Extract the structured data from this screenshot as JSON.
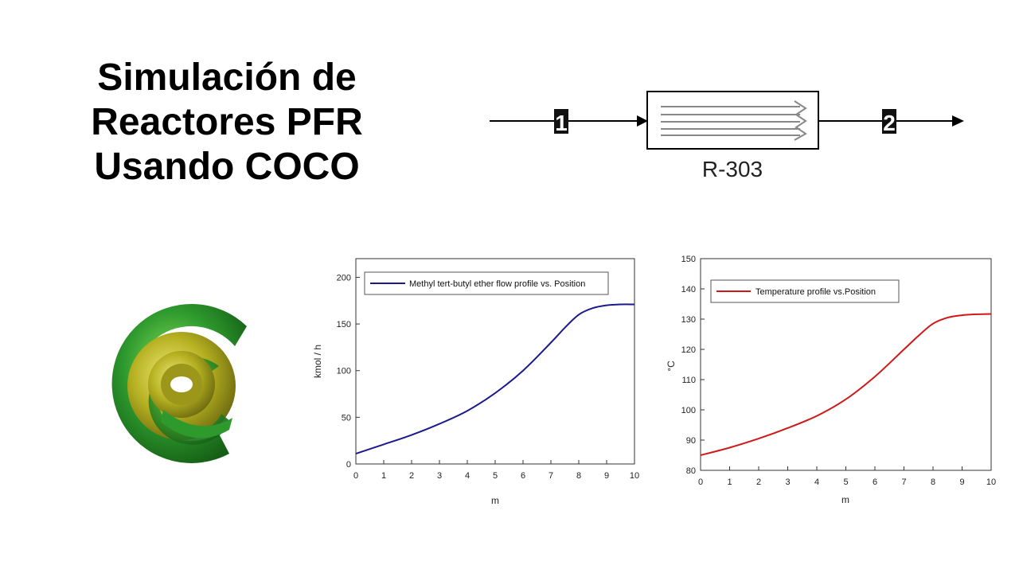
{
  "title": {
    "lines": [
      "Simulación de",
      "Reactores PFR",
      "Usando COCO"
    ]
  },
  "flowsheet": {
    "inlet_stream": "1",
    "outlet_stream": "2",
    "reactor_label": "R-303"
  },
  "colors": {
    "mtbe_line": "#1a1a8c",
    "temp_line": "#d01818",
    "logo_green": "#2e9a2e",
    "logo_yellow": "#b5b020"
  },
  "chart_data": [
    {
      "type": "line",
      "title": "",
      "xlabel": "m",
      "ylabel": "kmol / h",
      "xlim": [
        0,
        10
      ],
      "ylim": [
        0,
        220
      ],
      "xticks": [
        0,
        1,
        2,
        3,
        4,
        5,
        6,
        7,
        8,
        9,
        10
      ],
      "yticks": [
        0,
        50,
        100,
        150,
        200
      ],
      "grid": false,
      "legend": "top-left",
      "series": [
        {
          "name": "Methyl tert-butyl ether flow profile vs. Position",
          "x": [
            0,
            1,
            2,
            3,
            4,
            5,
            6,
            7,
            7.5,
            8,
            8.5,
            9,
            9.5,
            10
          ],
          "y": [
            11,
            21,
            31,
            43,
            57,
            76,
            100,
            130,
            146,
            160,
            167,
            170,
            171,
            171
          ]
        }
      ]
    },
    {
      "type": "line",
      "title": "",
      "xlabel": "m",
      "ylabel": "°C",
      "xlim": [
        0,
        10
      ],
      "ylim": [
        80,
        150
      ],
      "xticks": [
        0,
        1,
        2,
        3,
        4,
        5,
        6,
        7,
        8,
        9,
        10
      ],
      "yticks": [
        80,
        90,
        100,
        110,
        120,
        130,
        140,
        150
      ],
      "grid": false,
      "legend": "top-left",
      "series": [
        {
          "name": "Temperature profile vs.Position",
          "x": [
            0,
            1,
            2,
            3,
            4,
            5,
            6,
            7,
            7.5,
            8,
            8.5,
            9,
            9.5,
            10
          ],
          "y": [
            85,
            87.5,
            90.5,
            94,
            98,
            103.5,
            111,
            120,
            124.5,
            128.5,
            130.5,
            131.3,
            131.6,
            131.7
          ]
        }
      ]
    }
  ]
}
